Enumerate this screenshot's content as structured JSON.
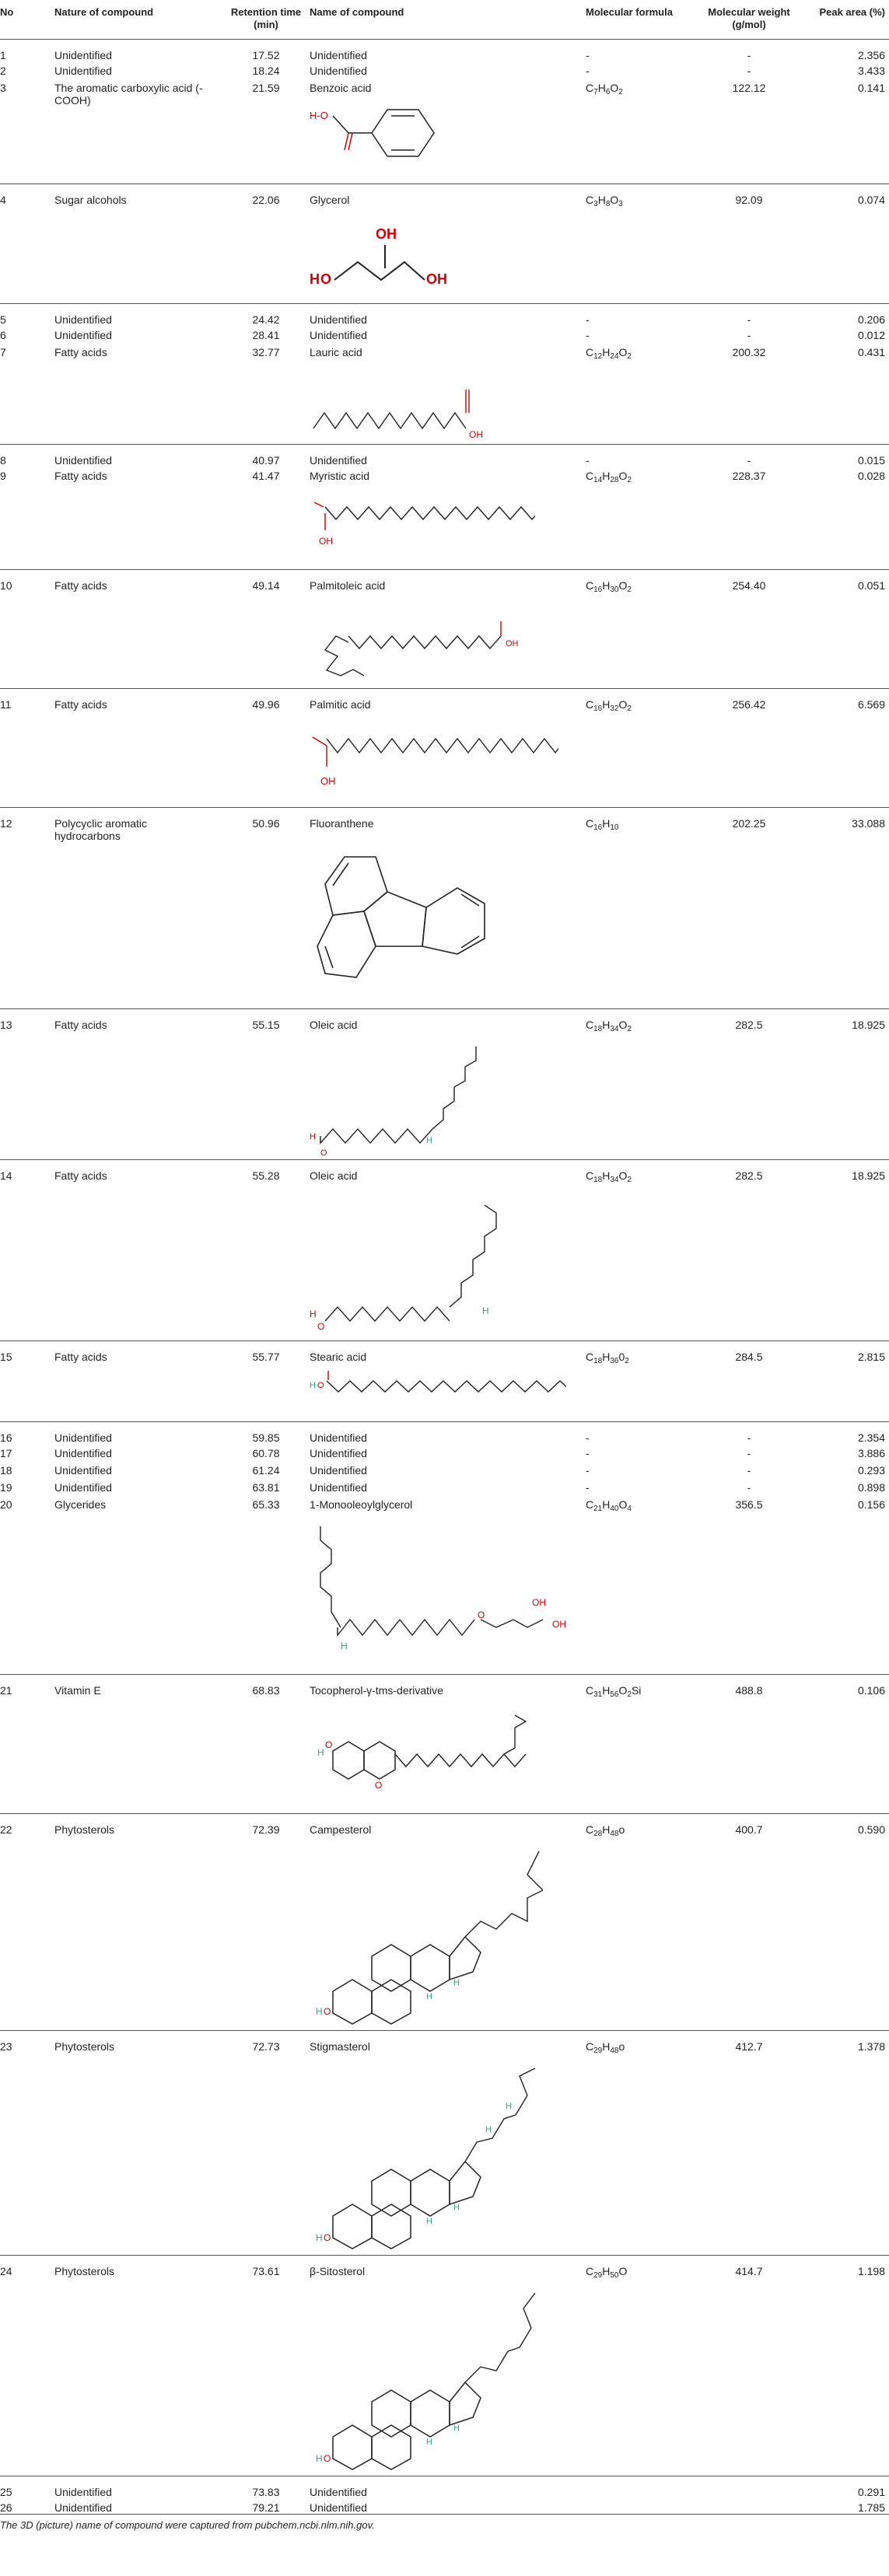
{
  "header": {
    "no": "No",
    "nature": "Nature of compound",
    "rt": "Retention time (min)",
    "name": "Name of compound",
    "formula": "Molecular formula",
    "mw": "Molecular weight (g/mol)",
    "area": "Peak area (%)"
  },
  "rows": [
    {
      "no": "1",
      "nature": "Unidentified",
      "rt": "17.52",
      "name": "Unidentified",
      "mw": "-",
      "area": "2.356",
      "formula": "-"
    },
    {
      "no": "2",
      "nature": "Unidentified",
      "rt": "18.24",
      "name": "Unidentified",
      "mw": "-",
      "area": "3.433",
      "formula": "-"
    },
    {
      "no": "3",
      "nature": "The aromatic carboxylic acid (-COOH)",
      "rt": "21.59",
      "name": "Benzoic acid",
      "mw": "122.12",
      "area": "0.141",
      "formula": "C7H6O2"
    },
    {
      "no": "4",
      "nature": "Sugar alcohols",
      "rt": "22.06",
      "name": "Glycerol",
      "mw": "92.09",
      "area": "0.074",
      "formula": "C3H8O3"
    },
    {
      "no": "5",
      "nature": "Unidentified",
      "rt": "24.42",
      "name": "Unidentified",
      "mw": "-",
      "area": "0.206",
      "formula": "-"
    },
    {
      "no": "6",
      "nature": "Unidentified",
      "rt": "28.41",
      "name": "Unidentified",
      "mw": "-",
      "area": "0.012",
      "formula": "-"
    },
    {
      "no": "7",
      "nature": "Fatty acids",
      "rt": "32.77",
      "name": "Lauric acid",
      "mw": "200.32",
      "area": "0.431",
      "formula": "C12H24O2"
    },
    {
      "no": "8",
      "nature": "Unidentified",
      "rt": "40.97",
      "name": "Unidentified",
      "mw": "-",
      "area": "0.015",
      "formula": "-"
    },
    {
      "no": "9",
      "nature": "Fatty acids",
      "rt": "41.47",
      "name": "Myristic acid",
      "mw": "228.37",
      "area": "0.028",
      "formula": "C14H28O2"
    },
    {
      "no": "10",
      "nature": "Fatty acids",
      "rt": "49.14",
      "name": "Palmitoleic acid",
      "mw": "254.40",
      "area": "0.051",
      "formula": "C16H30O2"
    },
    {
      "no": "11",
      "nature": "Fatty acids",
      "rt": "49.96",
      "name": "Palmitic acid",
      "mw": "256.42",
      "area": "6.569",
      "formula": "C16H32O2"
    },
    {
      "no": "12",
      "nature": "Polycyclic aromatic hydrocarbons",
      "rt": "50.96",
      "name": "Fluoranthene",
      "mw": "202.25",
      "area": "33.088",
      "formula": "C16H10"
    },
    {
      "no": "13",
      "nature": "Fatty acids",
      "rt": "55.15",
      "name": "Oleic acid",
      "mw": "282.5",
      "area": "18.925",
      "formula": "C18H34O2"
    },
    {
      "no": "14",
      "nature": "Fatty acids",
      "rt": "55.28",
      "name": "Oleic acid",
      "mw": "282.5",
      "area": "18.925",
      "formula": "C18H34O2"
    },
    {
      "no": "15",
      "nature": "Fatty acids",
      "rt": "55.77",
      "name": "Stearic acid",
      "mw": "284.5",
      "area": "2.815",
      "formula": "C18H3602"
    },
    {
      "no": "16",
      "nature": "Unidentified",
      "rt": "59.85",
      "name": "Unidentified",
      "mw": "-",
      "area": "2.354",
      "formula": "-"
    },
    {
      "no": "17",
      "nature": "Unidentified",
      "rt": "60.78",
      "name": "Unidentified",
      "mw": "-",
      "area": "3.886",
      "formula": "-"
    },
    {
      "no": "18",
      "nature": "Unidentified",
      "rt": "61.24",
      "name": "Unidentified",
      "mw": "-",
      "area": "0.293",
      "formula": "-"
    },
    {
      "no": "19",
      "nature": "Unidentified",
      "rt": "63.81",
      "name": "Unidentified",
      "mw": "-",
      "area": "0.898",
      "formula": "-"
    },
    {
      "no": "20",
      "nature": "Glycerides",
      "rt": "65.33",
      "name": "1-Monooleoylglycerol",
      "mw": "356.5",
      "area": "0.156",
      "formula": "C21H40O4"
    },
    {
      "no": "21",
      "nature": "Vitamin E",
      "rt": "68.83",
      "name": "Tocopherol-γ-tms-derivative",
      "mw": "488.8",
      "area": "0.106",
      "formula": "C31H56O2Si"
    },
    {
      "no": "22",
      "nature": "Phytosterols",
      "rt": "72.39",
      "name": "Campesterol",
      "mw": "400.7",
      "area": "0.590",
      "formula": "C28H48o"
    },
    {
      "no": "23",
      "nature": "Phytosterols",
      "rt": "72.73",
      "name": "Stigmasterol",
      "mw": "412.7",
      "area": "1.378",
      "formula": "C29H48o"
    },
    {
      "no": "24",
      "nature": "Phytosterols",
      "rt": "73.61",
      "name": "β-Sitosterol",
      "mw": "414.7",
      "area": "1.198",
      "formula": "C29H50O"
    },
    {
      "no": "25",
      "nature": "Unidentified",
      "rt": "73.83",
      "name": "Unidentified",
      "mw": "",
      "area": "0.291",
      "formula": ""
    },
    {
      "no": "26",
      "nature": "Unidentified",
      "rt": "79.21",
      "name": "Unidentified",
      "mw": "",
      "area": "1.785",
      "formula": ""
    }
  ],
  "formula_parts": {
    "r3": [
      "C",
      "7",
      "H",
      "6",
      "O",
      "2"
    ],
    "r4": [
      "C",
      "3",
      "H",
      "8",
      "O",
      "3"
    ],
    "r7": [
      "C",
      "12",
      "H",
      "24",
      "O",
      "2"
    ],
    "r9": [
      "C",
      "14",
      "H",
      "28",
      "O",
      "2"
    ],
    "r10": [
      "C",
      "16",
      "H",
      "30",
      "O",
      "2"
    ],
    "r11": [
      "C",
      "16",
      "H",
      "32",
      "O",
      "2"
    ],
    "r12": [
      "C",
      "16",
      "H",
      "10"
    ],
    "r13": [
      "C",
      "18",
      "H",
      "34",
      "O",
      "2"
    ],
    "r14": [
      "C",
      "18",
      "H",
      "34",
      "O",
      "2"
    ],
    "r15": [
      "C",
      "18",
      "H",
      "36",
      "0",
      "2"
    ],
    "r20": [
      "C",
      "21",
      "H",
      "40",
      "O",
      "4"
    ],
    "r21": [
      "C",
      "31",
      "H",
      "56",
      "O",
      "2",
      "Si",
      ""
    ],
    "r22": [
      "C",
      "28",
      "H",
      "48",
      "o",
      ""
    ],
    "r23": [
      "C",
      "29",
      "H",
      "48",
      "o",
      ""
    ],
    "r24": [
      "C",
      "29",
      "H",
      "50",
      "O",
      ""
    ]
  },
  "structure_labels": {
    "ho": "H-O",
    "oh": "OH",
    "h": "H",
    "o": "O"
  },
  "footnote": "The 3D (picture) name of compound were captured from pubchem.ncbi.nlm.nih.gov."
}
